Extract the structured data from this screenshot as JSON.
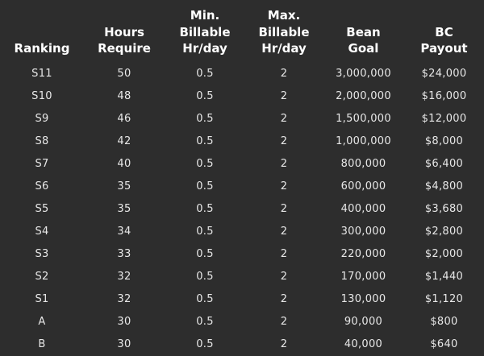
{
  "colors": {
    "background": "#2d2d2d",
    "header_text": "#ffffff",
    "cell_text": "#e7e7e7"
  },
  "chart_data": {
    "type": "table",
    "columns": [
      "Ranking",
      "Hours\nRequire",
      "Min.\nBillable\nHr/day",
      "Max.\nBillable\nHr/day",
      "Bean\nGoal",
      "BC\nPayout"
    ],
    "rows": [
      [
        "S11",
        "50",
        "0.5",
        "2",
        "3,000,000",
        "$24,000"
      ],
      [
        "S10",
        "48",
        "0.5",
        "2",
        "2,000,000",
        "$16,000"
      ],
      [
        "S9",
        "46",
        "0.5",
        "2",
        "1,500,000",
        "$12,000"
      ],
      [
        "S8",
        "42",
        "0.5",
        "2",
        "1,000,000",
        "$8,000"
      ],
      [
        "S7",
        "40",
        "0.5",
        "2",
        "800,000",
        "$6,400"
      ],
      [
        "S6",
        "35",
        "0.5",
        "2",
        "600,000",
        "$4,800"
      ],
      [
        "S5",
        "35",
        "0.5",
        "2",
        "400,000",
        "$3,680"
      ],
      [
        "S4",
        "34",
        "0.5",
        "2",
        "300,000",
        "$2,800"
      ],
      [
        "S3",
        "33",
        "0.5",
        "2",
        "220,000",
        "$2,000"
      ],
      [
        "S2",
        "32",
        "0.5",
        "2",
        "170,000",
        "$1,440"
      ],
      [
        "S1",
        "32",
        "0.5",
        "2",
        "130,000",
        "$1,120"
      ],
      [
        "A",
        "30",
        "0.5",
        "2",
        "90,000",
        "$800"
      ],
      [
        "B",
        "30",
        "0.5",
        "2",
        "40,000",
        "$640"
      ]
    ]
  }
}
